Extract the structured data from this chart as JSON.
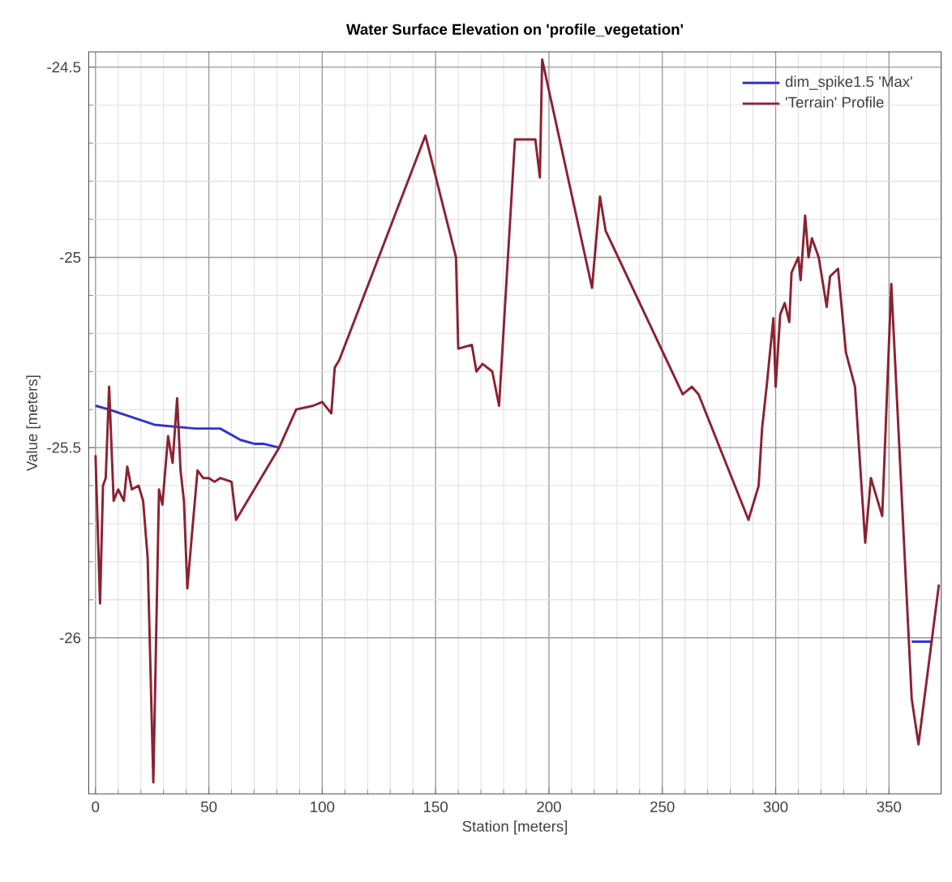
{
  "chart_data": {
    "type": "line",
    "title": "Water Surface Elevation on 'profile_vegetation'",
    "xlabel": "Station [meters]",
    "ylabel": "Value [meters]",
    "xlim": [
      -3,
      373
    ],
    "ylim": [
      -26.41,
      -24.46
    ],
    "xticks": [
      0,
      50,
      100,
      150,
      200,
      250,
      300,
      350
    ],
    "yticks": [
      -24.5,
      -25,
      -25.5,
      -26
    ],
    "grid": true,
    "legend": "top right",
    "marker": "none",
    "line_style": "solid",
    "series": [
      {
        "name": "dim_spike1.5 'Max'",
        "color": "#3333cc",
        "x": [
          0,
          6,
          26,
          44,
          55,
          64,
          70,
          74,
          81,
          220,
          360,
          369
        ],
        "values": [
          -25.39,
          -25.4,
          -25.44,
          -25.45,
          -25.45,
          -25.48,
          -25.49,
          -25.49,
          -25.5,
          null,
          -26.01,
          -26.01
        ]
      },
      {
        "name": "'Terrain' Profile",
        "color": "#8b2232",
        "x": [
          0,
          2,
          3.3,
          4.5,
          6,
          8,
          10,
          12.5,
          14,
          16,
          19,
          21,
          23,
          25.5,
          28,
          29.5,
          32,
          34,
          36,
          37.5,
          39,
          40.5,
          42.5,
          45,
          47.5,
          50,
          52.5,
          55,
          60,
          62,
          81,
          88.5,
          96,
          100,
          104,
          105.5,
          107.5,
          145.5,
          159,
          160,
          166,
          168,
          170.7,
          175,
          178,
          185,
          187.5,
          194,
          196,
          197,
          219,
          222.5,
          225,
          259,
          263,
          266,
          288,
          292.5,
          294,
          296,
          299,
          300,
          302,
          304,
          306,
          307,
          310,
          311,
          313,
          314.5,
          316,
          319,
          322.5,
          324,
          327.5,
          331,
          335,
          339.5,
          342,
          347,
          351,
          360,
          363,
          372
        ],
        "values": [
          -25.52,
          -25.91,
          -25.6,
          -25.58,
          -25.34,
          -25.64,
          -25.61,
          -25.64,
          -25.55,
          -25.61,
          -25.6,
          -25.64,
          -25.79,
          -26.38,
          -25.61,
          -25.65,
          -25.47,
          -25.54,
          -25.37,
          -25.56,
          -25.64,
          -25.87,
          -25.73,
          -25.56,
          -25.58,
          -25.58,
          -25.59,
          -25.58,
          -25.59,
          -25.69,
          -25.5,
          -25.4,
          -25.39,
          -25.38,
          -25.41,
          -25.29,
          -25.27,
          -24.68,
          -25.0,
          -25.24,
          -25.23,
          -25.3,
          -25.28,
          -25.3,
          -25.39,
          -24.69,
          -24.69,
          -24.69,
          -24.79,
          -24.48,
          -25.08,
          -24.84,
          -24.93,
          -25.36,
          -25.34,
          -25.36,
          -25.69,
          -25.6,
          -25.45,
          -25.34,
          -25.16,
          -25.34,
          -25.15,
          -25.12,
          -25.17,
          -25.04,
          -25.0,
          -25.06,
          -24.89,
          -25.0,
          -24.95,
          -25.0,
          -25.13,
          -25.05,
          -25.03,
          -25.25,
          -25.34,
          -25.75,
          -25.58,
          -25.68,
          -25.07,
          -26.16,
          -26.28,
          -25.86
        ]
      }
    ]
  }
}
